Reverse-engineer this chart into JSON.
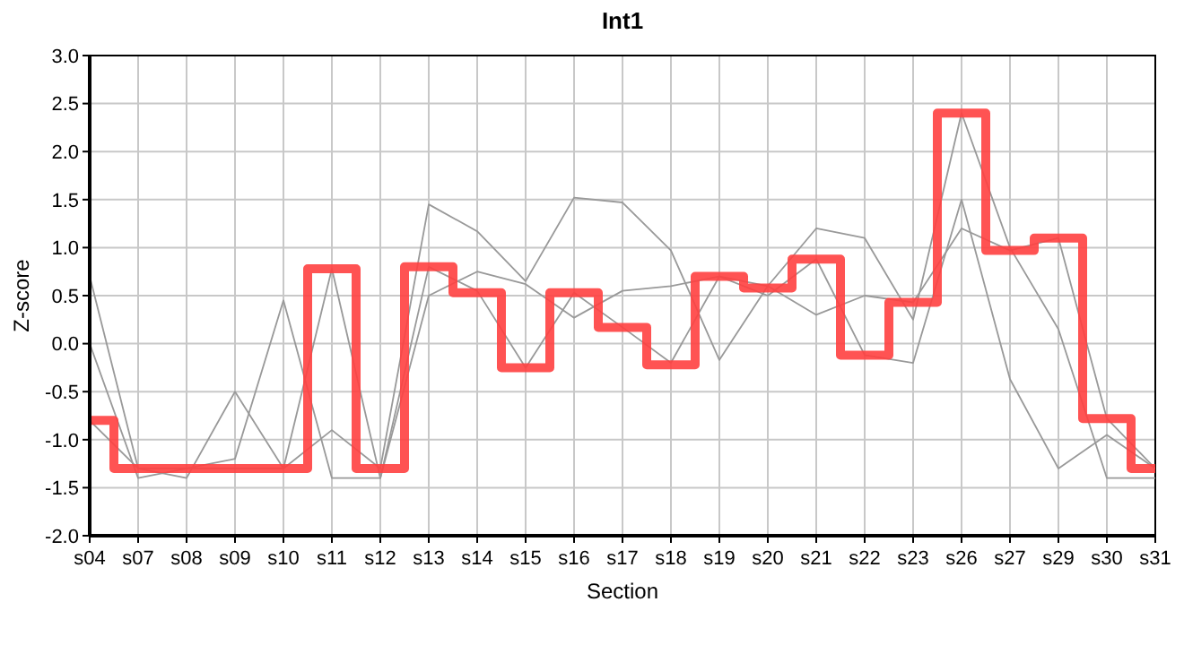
{
  "chart_data": {
    "type": "line",
    "title": "Int1",
    "xlabel": "Section",
    "ylabel": "Z-score",
    "categories": [
      "s04",
      "s07",
      "s08",
      "s09",
      "s10",
      "s11",
      "s12",
      "s13",
      "s14",
      "s15",
      "s16",
      "s17",
      "s18",
      "s19",
      "s20",
      "s21",
      "s22",
      "s23",
      "s26",
      "s27",
      "s29",
      "s30",
      "s31"
    ],
    "ylim": [
      -2,
      3
    ],
    "yticks": [
      {
        "value": -2,
        "label": "-2.0"
      },
      {
        "value": -1.5,
        "label": "-1.5"
      },
      {
        "value": -1,
        "label": "-1.0"
      },
      {
        "value": -0.5,
        "label": "-0.5"
      },
      {
        "value": 0,
        "label": "0.0"
      },
      {
        "value": 0.5,
        "label": "0.5"
      },
      {
        "value": 1,
        "label": "1.0"
      },
      {
        "value": 1.5,
        "label": "1.5"
      },
      {
        "value": 2,
        "label": "2.0"
      },
      {
        "value": 2.5,
        "label": "2.5"
      },
      {
        "value": 3,
        "label": "3.0"
      }
    ],
    "grid": true,
    "series": [
      {
        "type": "line",
        "color": "#999999",
        "values": [
          0.7,
          -1.3,
          -1.4,
          -0.5,
          -1.3,
          -0.9,
          -1.3,
          1.45,
          1.17,
          0.65,
          1.52,
          1.47,
          0.97,
          -0.17,
          0.6,
          1.2,
          1.1,
          0.25,
          2.4,
          1.0,
          0.15,
          -1.4,
          -1.4
        ]
      },
      {
        "type": "line",
        "color": "#999999",
        "values": [
          0.0,
          -1.4,
          -1.3,
          -1.2,
          0.45,
          -1.4,
          -1.4,
          0.8,
          0.55,
          -0.25,
          0.53,
          0.17,
          -0.2,
          0.7,
          0.5,
          0.88,
          -0.12,
          -0.2,
          1.5,
          -0.37,
          -1.3,
          -0.95,
          -1.3
        ]
      },
      {
        "type": "line",
        "color": "#999999",
        "values": [
          -0.8,
          -1.3,
          -1.3,
          -1.3,
          -1.3,
          0.78,
          -1.4,
          0.5,
          0.75,
          0.62,
          0.27,
          0.55,
          0.6,
          0.7,
          0.6,
          0.3,
          0.5,
          0.43,
          1.2,
          0.97,
          1.1,
          -0.78,
          -1.3
        ]
      },
      {
        "type": "step",
        "color": "#ff4040",
        "values": [
          -0.8,
          -1.3,
          -1.3,
          -1.3,
          -1.3,
          0.78,
          -1.3,
          0.8,
          0.53,
          -0.25,
          0.53,
          0.17,
          -0.22,
          0.7,
          0.58,
          0.88,
          -0.12,
          0.43,
          2.4,
          0.97,
          1.1,
          -0.78,
          -1.3
        ]
      }
    ]
  }
}
